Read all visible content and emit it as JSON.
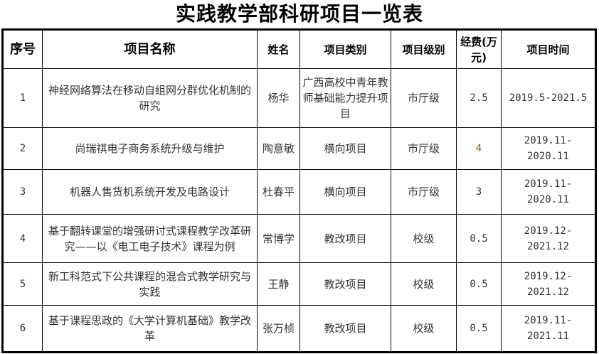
{
  "title": "实践教学部科研项目一览表",
  "headers": [
    "序号",
    "项目名称",
    "姓名",
    "项目类别",
    "项目级别",
    "经费(万元)",
    "项目时间"
  ],
  "rows": [
    {
      "no": "1",
      "name": "神经网络算法在移动自组网分群优化机制的研究",
      "person": "杨华",
      "category": "广西高校中青年教师基础能力提升项目",
      "level": "市厅级",
      "fund": "2.5",
      "time": "2019.5-2021.5"
    },
    {
      "no": "2",
      "name": "尚瑞祺电子商务系统升级与维护",
      "person": "陶意敏",
      "category": "横向项目",
      "level": "市厅级",
      "fund": "4",
      "time": "2019.11-2020.11"
    },
    {
      "no": "3",
      "name": "机器人售货机系统开发及电路设计",
      "person": "杜春平",
      "category": "横向项目",
      "level": "市厅级",
      "fund": "3",
      "time": "2019.11-2020.11"
    },
    {
      "no": "4",
      "name": "基于翻转课堂的增强研讨式课程教学改革研究——以《电工电子技术》课程为例",
      "person": "常博学",
      "category": "教改项目",
      "level": "校级",
      "fund": "0.5",
      "time": "2019.12-2021.12"
    },
    {
      "no": "5",
      "name": "新工科范式下公共课程的混合式教学研究与实践",
      "person": "王静",
      "category": "教改项目",
      "level": "校级",
      "fund": "0.5",
      "time": "2019.12-2021.12"
    },
    {
      "no": "6",
      "name": "基于课程思政的《大学计算机基础》教学改革",
      "person": "张万桢",
      "category": "教改项目",
      "level": "校级",
      "fund": "0.5",
      "time": "2019.11-2021.11"
    }
  ]
}
